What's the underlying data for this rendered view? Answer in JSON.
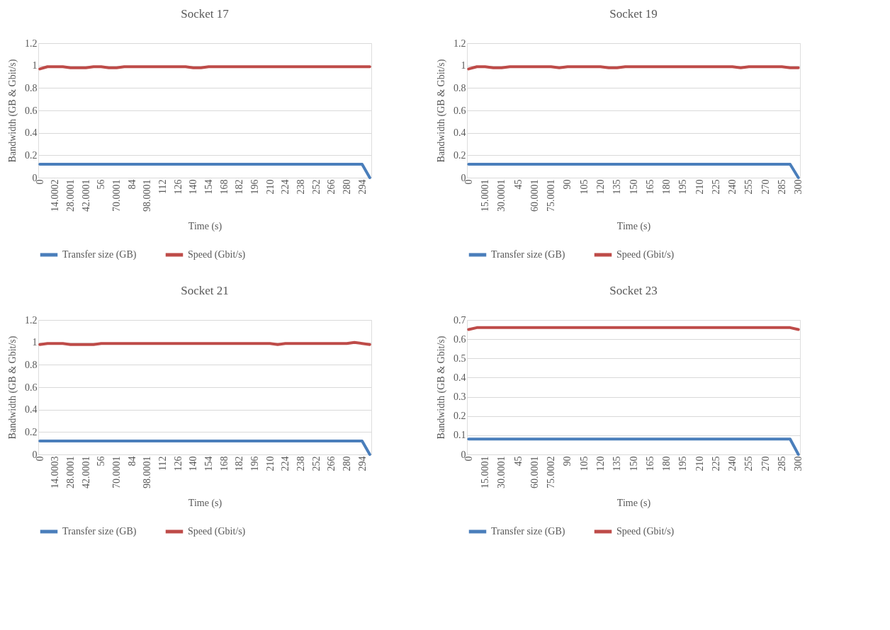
{
  "chart_data": [
    {
      "type": "line",
      "title": "Socket 17",
      "xlabel": "Time (s)",
      "ylabel": "Bandwidth (GB & Gbit/s)",
      "grid": "y",
      "legend": "bottom",
      "ylim": [
        0,
        1.2
      ],
      "yticks": [
        0,
        0.2,
        0.4,
        0.6,
        0.8,
        1,
        1.2
      ],
      "categories": [
        "0",
        null,
        "14.0002",
        null,
        "28.0001",
        null,
        "42.0001",
        null,
        "56",
        null,
        "70.0001",
        null,
        "84",
        null,
        "98.0001",
        null,
        "112",
        null,
        "126",
        null,
        "140",
        null,
        "154",
        null,
        "168",
        null,
        "182",
        null,
        "196",
        null,
        "210",
        null,
        "224",
        null,
        "238",
        null,
        "252",
        null,
        "266",
        null,
        "280",
        null,
        "294",
        null
      ],
      "series": [
        {
          "name": "Transfer size (GB)",
          "color": "#4a7ebb",
          "values": [
            0.12,
            0.12,
            0.12,
            0.12,
            0.12,
            0.12,
            0.12,
            0.12,
            0.12,
            0.12,
            0.12,
            0.12,
            0.12,
            0.12,
            0.12,
            0.12,
            0.12,
            0.12,
            0.12,
            0.12,
            0.12,
            0.12,
            0.12,
            0.12,
            0.12,
            0.12,
            0.12,
            0.12,
            0.12,
            0.12,
            0.12,
            0.12,
            0.12,
            0.12,
            0.12,
            0.12,
            0.12,
            0.12,
            0.12,
            0.12,
            0.12,
            0.12,
            0.12,
            0
          ]
        },
        {
          "name": "Speed (Gbit/s)",
          "color": "#be4b48",
          "values": [
            0.97,
            0.99,
            0.99,
            0.99,
            0.98,
            0.98,
            0.98,
            0.99,
            0.99,
            0.98,
            0.98,
            0.99,
            0.99,
            0.99,
            0.99,
            0.99,
            0.99,
            0.99,
            0.99,
            0.99,
            0.98,
            0.98,
            0.99,
            0.99,
            0.99,
            0.99,
            0.99,
            0.99,
            0.99,
            0.99,
            0.99,
            0.99,
            0.99,
            0.99,
            0.99,
            0.99,
            0.99,
            0.99,
            0.99,
            0.99,
            0.99,
            0.99,
            0.99,
            0.99
          ]
        }
      ]
    },
    {
      "type": "line",
      "title": "Socket 19",
      "xlabel": "Time (s)",
      "ylabel": "Bandwidth (GB & Gbit/s)",
      "grid": "y",
      "legend": "bottom",
      "ylim": [
        0,
        1.2
      ],
      "yticks": [
        0,
        0.2,
        0.4,
        0.6,
        0.8,
        1,
        1.2
      ],
      "categories": [
        "0",
        null,
        "15.0001",
        null,
        "30.0001",
        null,
        "45",
        null,
        "60.0001",
        null,
        "75.0001",
        null,
        "90",
        null,
        "105",
        null,
        "120",
        null,
        "135",
        null,
        "150",
        null,
        "165",
        null,
        "180",
        null,
        "195",
        null,
        "210",
        null,
        "225",
        null,
        "240",
        null,
        "255",
        null,
        "270",
        null,
        "285",
        null,
        "300"
      ],
      "series": [
        {
          "name": "Transfer size (GB)",
          "color": "#4a7ebb",
          "values": [
            0.12,
            0.12,
            0.12,
            0.12,
            0.12,
            0.12,
            0.12,
            0.12,
            0.12,
            0.12,
            0.12,
            0.12,
            0.12,
            0.12,
            0.12,
            0.12,
            0.12,
            0.12,
            0.12,
            0.12,
            0.12,
            0.12,
            0.12,
            0.12,
            0.12,
            0.12,
            0.12,
            0.12,
            0.12,
            0.12,
            0.12,
            0.12,
            0.12,
            0.12,
            0.12,
            0.12,
            0.12,
            0.12,
            0.12,
            0.12,
            0
          ]
        },
        {
          "name": "Speed (Gbit/s)",
          "color": "#be4b48",
          "values": [
            0.97,
            0.99,
            0.99,
            0.98,
            0.98,
            0.99,
            0.99,
            0.99,
            0.99,
            0.99,
            0.99,
            0.98,
            0.99,
            0.99,
            0.99,
            0.99,
            0.99,
            0.98,
            0.98,
            0.99,
            0.99,
            0.99,
            0.99,
            0.99,
            0.99,
            0.99,
            0.99,
            0.99,
            0.99,
            0.99,
            0.99,
            0.99,
            0.99,
            0.98,
            0.99,
            0.99,
            0.99,
            0.99,
            0.99,
            0.98,
            0.98
          ]
        }
      ]
    },
    {
      "type": "line",
      "title": "Socket 21",
      "xlabel": "Time (s)",
      "ylabel": "Bandwidth (GB & Gbit/s)",
      "grid": "y",
      "legend": "bottom",
      "ylim": [
        0,
        1.2
      ],
      "yticks": [
        0,
        0.2,
        0.4,
        0.6,
        0.8,
        1,
        1.2
      ],
      "categories": [
        "0",
        null,
        "14.0003",
        null,
        "28.0001",
        null,
        "42.0001",
        null,
        "56",
        null,
        "70.0001",
        null,
        "84",
        null,
        "98.0001",
        null,
        "112",
        null,
        "126",
        null,
        "140",
        null,
        "154",
        null,
        "168",
        null,
        "182",
        null,
        "196",
        null,
        "210",
        null,
        "224",
        null,
        "238",
        null,
        "252",
        null,
        "266",
        null,
        "280",
        null,
        "294",
        null
      ],
      "series": [
        {
          "name": "Transfer size (GB)",
          "color": "#4a7ebb",
          "values": [
            0.12,
            0.12,
            0.12,
            0.12,
            0.12,
            0.12,
            0.12,
            0.12,
            0.12,
            0.12,
            0.12,
            0.12,
            0.12,
            0.12,
            0.12,
            0.12,
            0.12,
            0.12,
            0.12,
            0.12,
            0.12,
            0.12,
            0.12,
            0.12,
            0.12,
            0.12,
            0.12,
            0.12,
            0.12,
            0.12,
            0.12,
            0.12,
            0.12,
            0.12,
            0.12,
            0.12,
            0.12,
            0.12,
            0.12,
            0.12,
            0.12,
            0.12,
            0.12,
            0
          ]
        },
        {
          "name": "Speed (Gbit/s)",
          "color": "#be4b48",
          "values": [
            0.98,
            0.99,
            0.99,
            0.99,
            0.98,
            0.98,
            0.98,
            0.98,
            0.99,
            0.99,
            0.99,
            0.99,
            0.99,
            0.99,
            0.99,
            0.99,
            0.99,
            0.99,
            0.99,
            0.99,
            0.99,
            0.99,
            0.99,
            0.99,
            0.99,
            0.99,
            0.99,
            0.99,
            0.99,
            0.99,
            0.99,
            0.98,
            0.99,
            0.99,
            0.99,
            0.99,
            0.99,
            0.99,
            0.99,
            0.99,
            0.99,
            1.0,
            0.99,
            0.98
          ]
        }
      ]
    },
    {
      "type": "line",
      "title": "Socket 23",
      "xlabel": "Time (s)",
      "ylabel": "Bandwidth (GB & Gbit/s)",
      "grid": "y",
      "legend": "bottom",
      "ylim": [
        0,
        0.7
      ],
      "yticks": [
        0,
        0.1,
        0.2,
        0.3,
        0.4,
        0.5,
        0.6,
        0.7
      ],
      "categories": [
        "0",
        null,
        "15.0001",
        null,
        "30.0001",
        null,
        "45",
        null,
        "60.0001",
        null,
        "75.0002",
        null,
        "90",
        null,
        "105",
        null,
        "120",
        null,
        "135",
        null,
        "150",
        null,
        "165",
        null,
        "180",
        null,
        "195",
        null,
        "210",
        null,
        "225",
        null,
        "240",
        null,
        "255",
        null,
        "270",
        null,
        "285",
        null,
        "300"
      ],
      "series": [
        {
          "name": "Transfer size (GB)",
          "color": "#4a7ebb",
          "values": [
            0.08,
            0.08,
            0.08,
            0.08,
            0.08,
            0.08,
            0.08,
            0.08,
            0.08,
            0.08,
            0.08,
            0.08,
            0.08,
            0.08,
            0.08,
            0.08,
            0.08,
            0.08,
            0.08,
            0.08,
            0.08,
            0.08,
            0.08,
            0.08,
            0.08,
            0.08,
            0.08,
            0.08,
            0.08,
            0.08,
            0.08,
            0.08,
            0.08,
            0.08,
            0.08,
            0.08,
            0.08,
            0.08,
            0.08,
            0.08,
            0
          ]
        },
        {
          "name": "Speed (Gbit/s)",
          "color": "#be4b48",
          "values": [
            0.65,
            0.66,
            0.66,
            0.66,
            0.66,
            0.66,
            0.66,
            0.66,
            0.66,
            0.66,
            0.66,
            0.66,
            0.66,
            0.66,
            0.66,
            0.66,
            0.66,
            0.66,
            0.66,
            0.66,
            0.66,
            0.66,
            0.66,
            0.66,
            0.66,
            0.66,
            0.66,
            0.66,
            0.66,
            0.66,
            0.66,
            0.66,
            0.66,
            0.66,
            0.66,
            0.66,
            0.66,
            0.66,
            0.66,
            0.66,
            0.65
          ]
        }
      ]
    }
  ]
}
